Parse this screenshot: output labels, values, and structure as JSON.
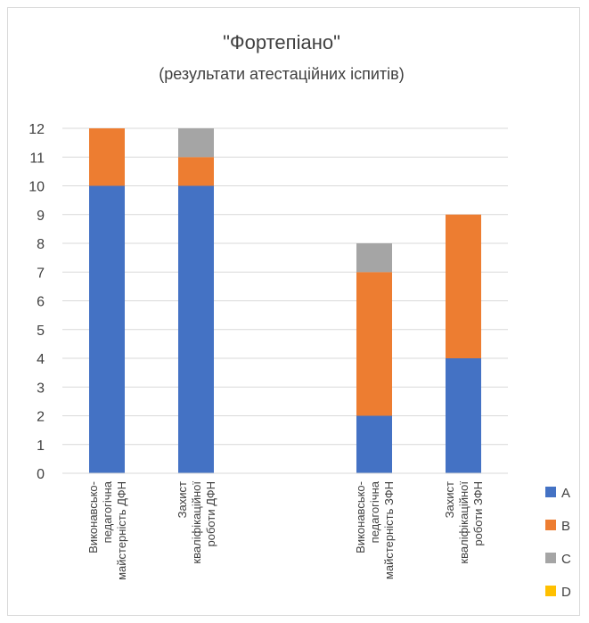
{
  "chart_data": {
    "type": "bar",
    "stacked": true,
    "title": "\"Фортепіано\"",
    "subtitle": "(результати атестаційних іспитів)",
    "categories": [
      [
        "Виконавсько-",
        "педагогічна",
        "майстерність ДФН"
      ],
      [
        "Захист",
        "кваліфікаційної",
        "роботи ДФН"
      ],
      [
        "",
        "",
        ""
      ],
      [
        "Виконавсько-",
        "педагогічна",
        "майстерність ЗФН"
      ],
      [
        "Захист",
        "кваліфікаційної",
        "роботи ЗФН"
      ]
    ],
    "series": [
      {
        "name": "A",
        "color": "#4472C4",
        "values": [
          10,
          10,
          0,
          2,
          4
        ]
      },
      {
        "name": "B",
        "color": "#ED7D31",
        "values": [
          2,
          1,
          0,
          5,
          5
        ]
      },
      {
        "name": "C",
        "color": "#A5A5A5",
        "values": [
          0,
          1,
          0,
          1,
          0
        ]
      },
      {
        "name": "D",
        "color": "#FFC000",
        "values": [
          0,
          0,
          0,
          0,
          0
        ]
      }
    ],
    "ylim": [
      0,
      12
    ],
    "yticks": [
      0,
      1,
      2,
      3,
      4,
      5,
      6,
      7,
      8,
      9,
      10,
      11,
      12
    ],
    "grid": true,
    "legend_position": "bottom-right"
  }
}
